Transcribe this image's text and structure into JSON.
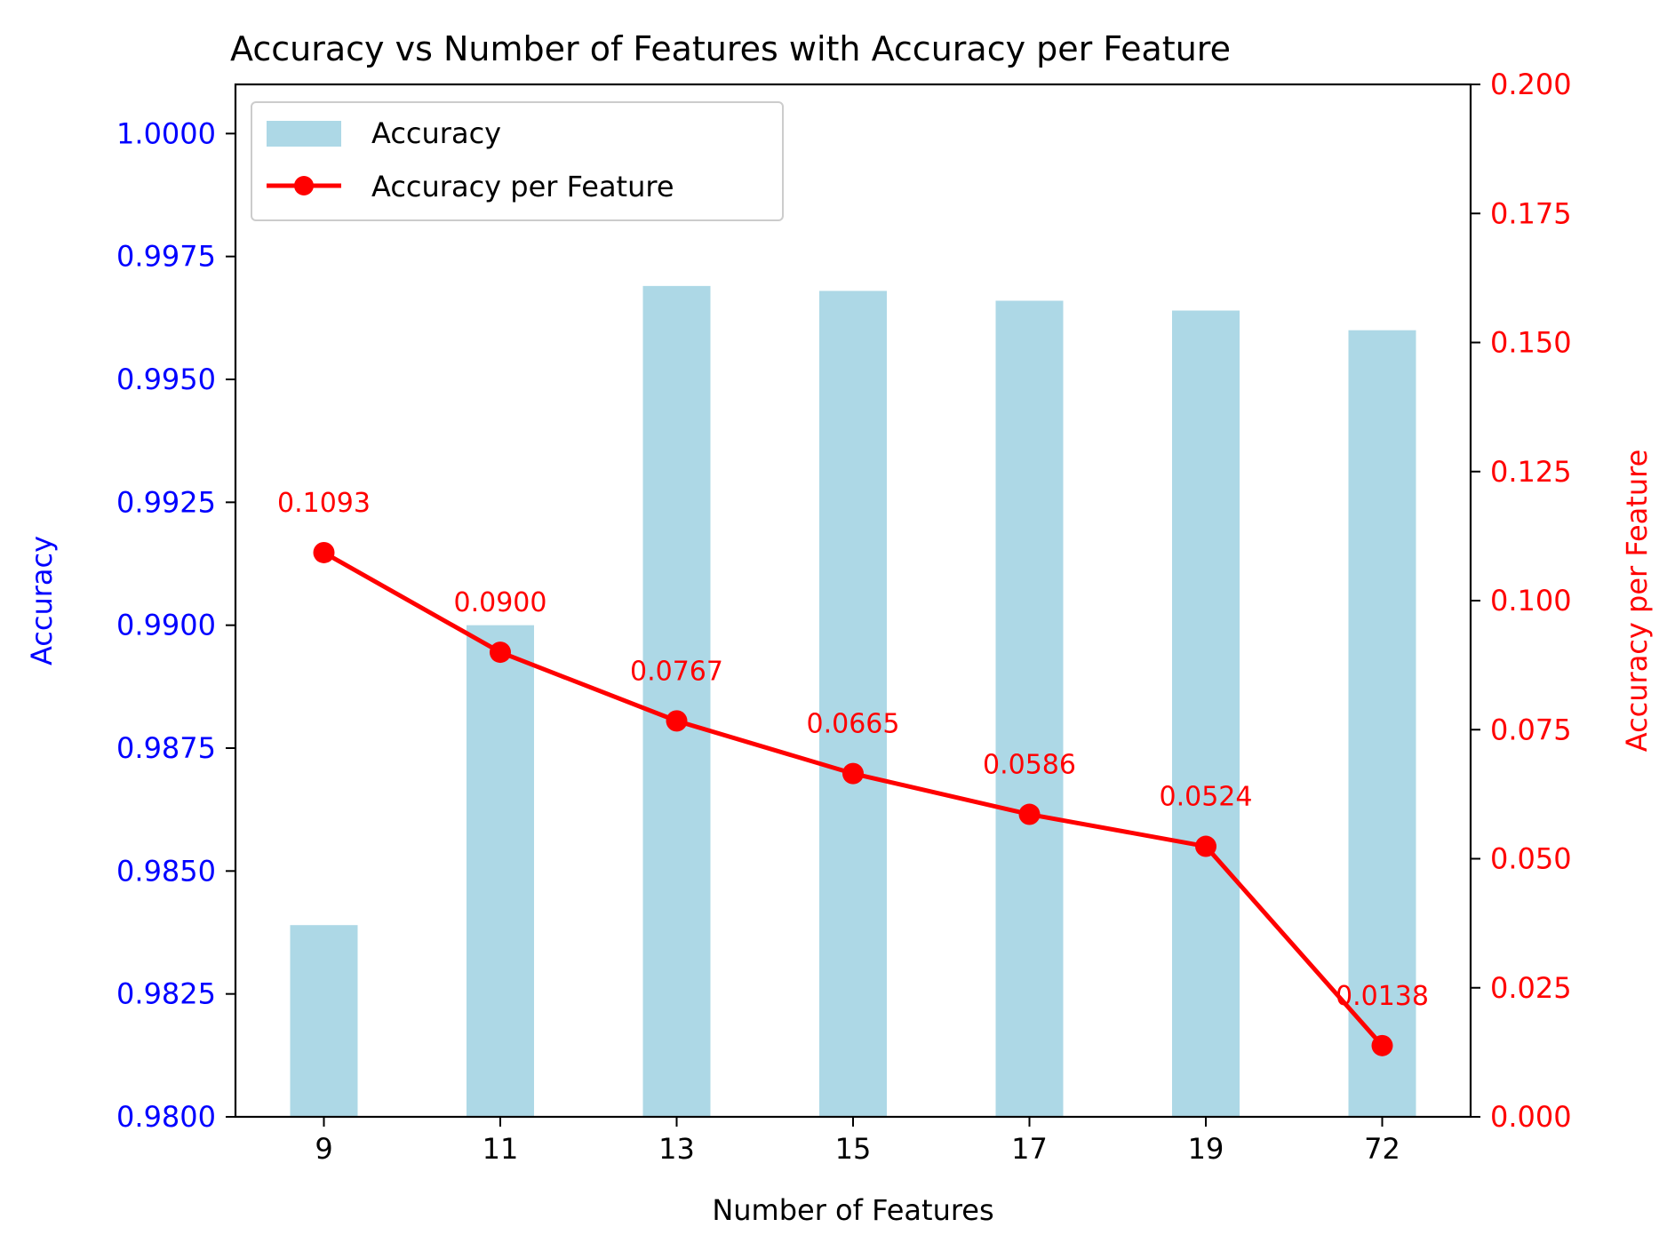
{
  "chart_data": {
    "type": "bar",
    "title": "Accuracy vs Number of Features with Accuracy per Feature",
    "xlabel": "Number of Features",
    "ylabel": "Accuracy",
    "ylabel_right": "Accuracy per Feature",
    "categories": [
      "9",
      "11",
      "13",
      "15",
      "17",
      "19",
      "72"
    ],
    "series": [
      {
        "name": "Accuracy",
        "type": "bar",
        "axis": "left",
        "color": "#add8e6",
        "values": [
          0.9839,
          0.99,
          0.9969,
          0.9968,
          0.9966,
          0.9964,
          0.996
        ]
      },
      {
        "name": "Accuracy per Feature",
        "type": "line",
        "axis": "right",
        "color": "#ff0000",
        "values": [
          0.1093,
          0.09,
          0.0767,
          0.0665,
          0.0586,
          0.0524,
          0.0138
        ],
        "labels": [
          "0.1093",
          "0.0900",
          "0.0767",
          "0.0665",
          "0.0586",
          "0.0524",
          "0.0138"
        ]
      }
    ],
    "ylim": [
      0.98,
      1.001
    ],
    "ylim_right": [
      0,
      0.2
    ],
    "yticks": [
      "0.9800",
      "0.9825",
      "0.9850",
      "0.9875",
      "0.9900",
      "0.9925",
      "0.9950",
      "0.9975",
      "1.0000"
    ],
    "yticks_right": [
      "0.000",
      "0.025",
      "0.050",
      "0.075",
      "0.100",
      "0.125",
      "0.150",
      "0.175",
      "0.200"
    ],
    "left_axis_color": "#0000ff",
    "right_axis_color": "#ff0000",
    "grid": false,
    "legend": "upper-left"
  }
}
